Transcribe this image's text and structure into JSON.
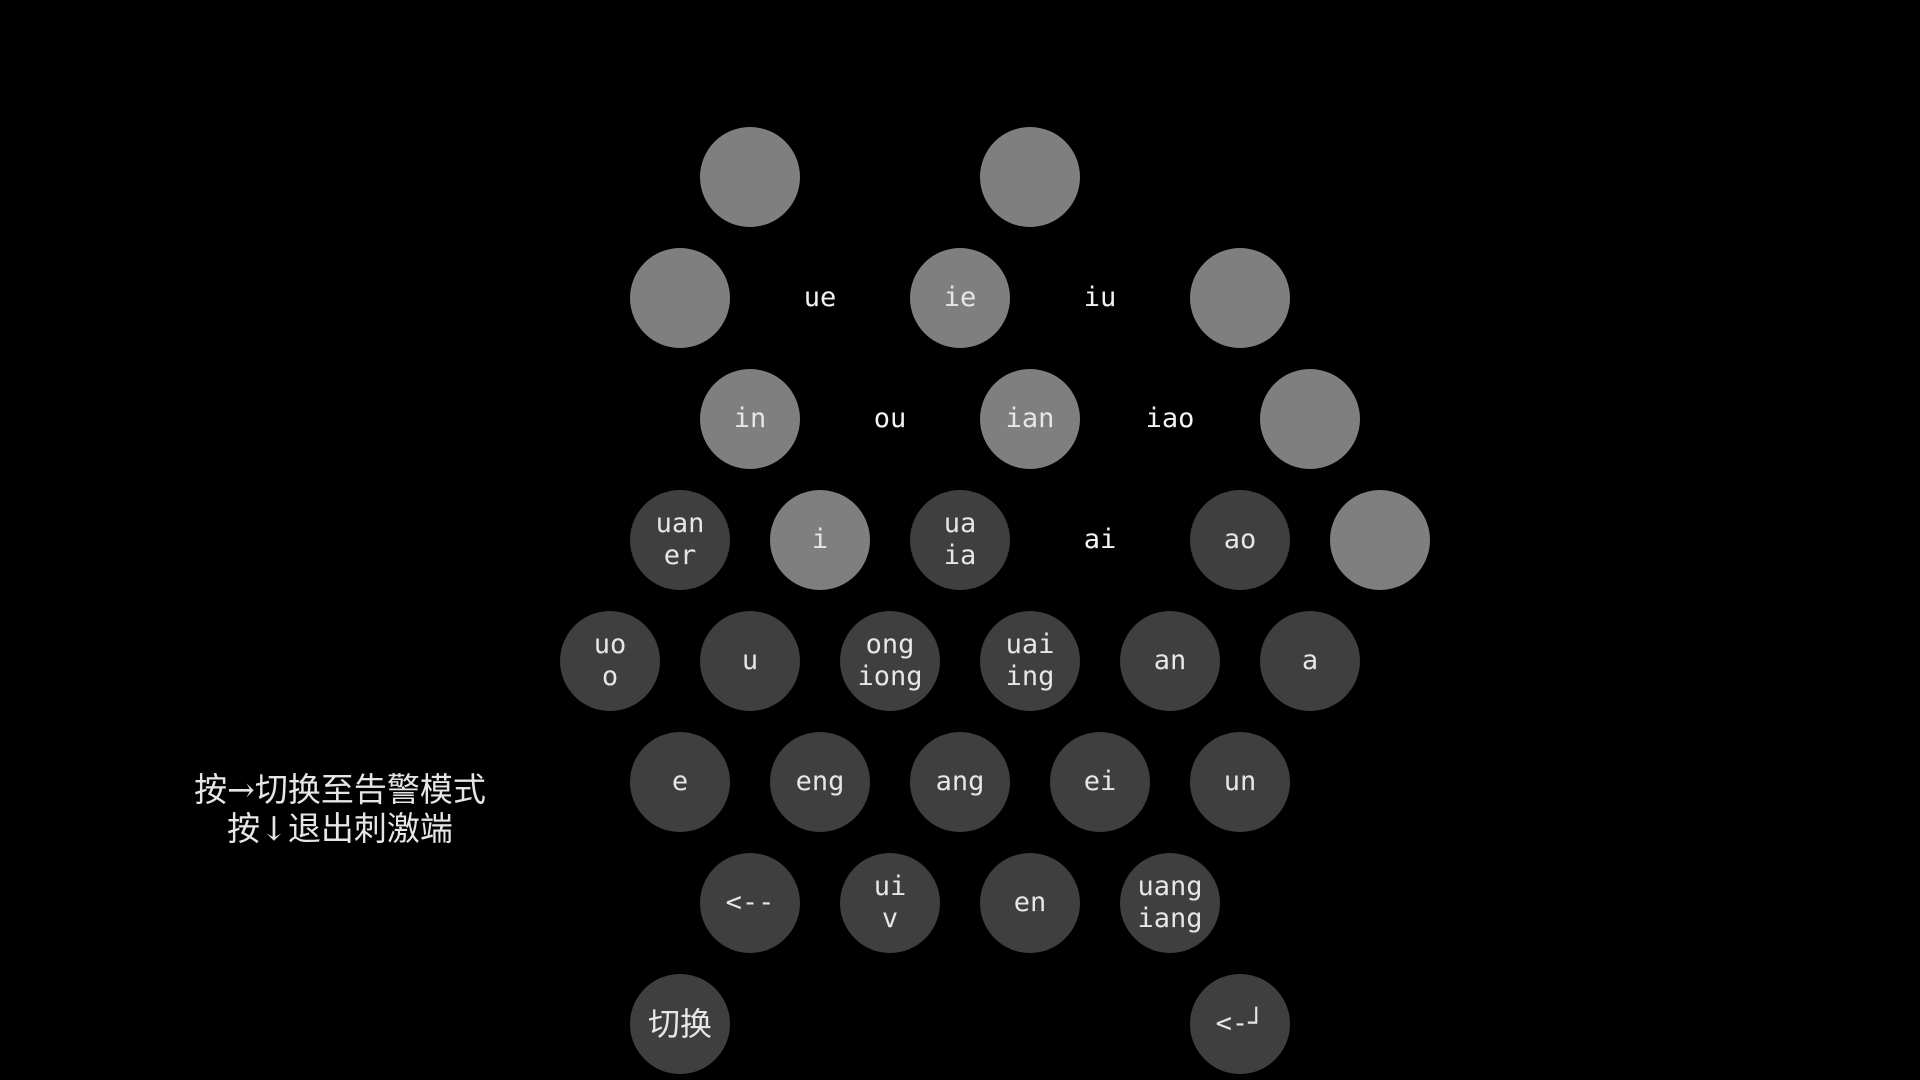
{
  "colors": {
    "background": "#000000",
    "light_key": "#7f7f7f",
    "dark_key": "#3f3f3f",
    "text": "#e6e6e6"
  },
  "hint": {
    "line1": "按→切换至告警模式",
    "line2": "按↓退出刺激端"
  },
  "keyboard": {
    "row1": [
      {
        "lines": [
          ""
        ]
      },
      {
        "lines": [
          ""
        ]
      }
    ],
    "row2": [
      {
        "lines": [
          ""
        ]
      },
      {
        "lines": [
          "ue"
        ]
      },
      {
        "lines": [
          "ie"
        ]
      },
      {
        "lines": [
          "iu"
        ]
      },
      {
        "lines": [
          ""
        ]
      }
    ],
    "row3": [
      {
        "lines": [
          "in"
        ]
      },
      {
        "lines": [
          "ou"
        ]
      },
      {
        "lines": [
          "ian"
        ]
      },
      {
        "lines": [
          "iao"
        ]
      },
      {
        "lines": [
          ""
        ]
      }
    ],
    "row4": [
      {
        "lines": [
          "uan",
          "er"
        ]
      },
      {
        "lines": [
          "i"
        ]
      },
      {
        "lines": [
          "ua",
          "ia"
        ]
      },
      {
        "lines": [
          "ai"
        ]
      },
      {
        "lines": [
          "ao"
        ]
      },
      {
        "lines": [
          ""
        ]
      }
    ],
    "row5": [
      {
        "lines": [
          "uo",
          "o"
        ]
      },
      {
        "lines": [
          "u"
        ]
      },
      {
        "lines": [
          "ong",
          "iong"
        ]
      },
      {
        "lines": [
          "uai",
          "ing"
        ]
      },
      {
        "lines": [
          "an"
        ]
      },
      {
        "lines": [
          "a"
        ]
      }
    ],
    "row6": [
      {
        "lines": [
          "e"
        ]
      },
      {
        "lines": [
          "eng"
        ]
      },
      {
        "lines": [
          "ang"
        ]
      },
      {
        "lines": [
          "ei"
        ]
      },
      {
        "lines": [
          "un"
        ]
      }
    ],
    "row7": [
      {
        "lines": [
          "<--"
        ]
      },
      {
        "lines": [
          "ui",
          "v"
        ]
      },
      {
        "lines": [
          "en"
        ]
      },
      {
        "lines": [
          "uang",
          "iang"
        ]
      }
    ],
    "row8": [
      {
        "lines": [
          "切换"
        ]
      },
      {
        "lines": [
          "<-┘"
        ]
      }
    ]
  }
}
